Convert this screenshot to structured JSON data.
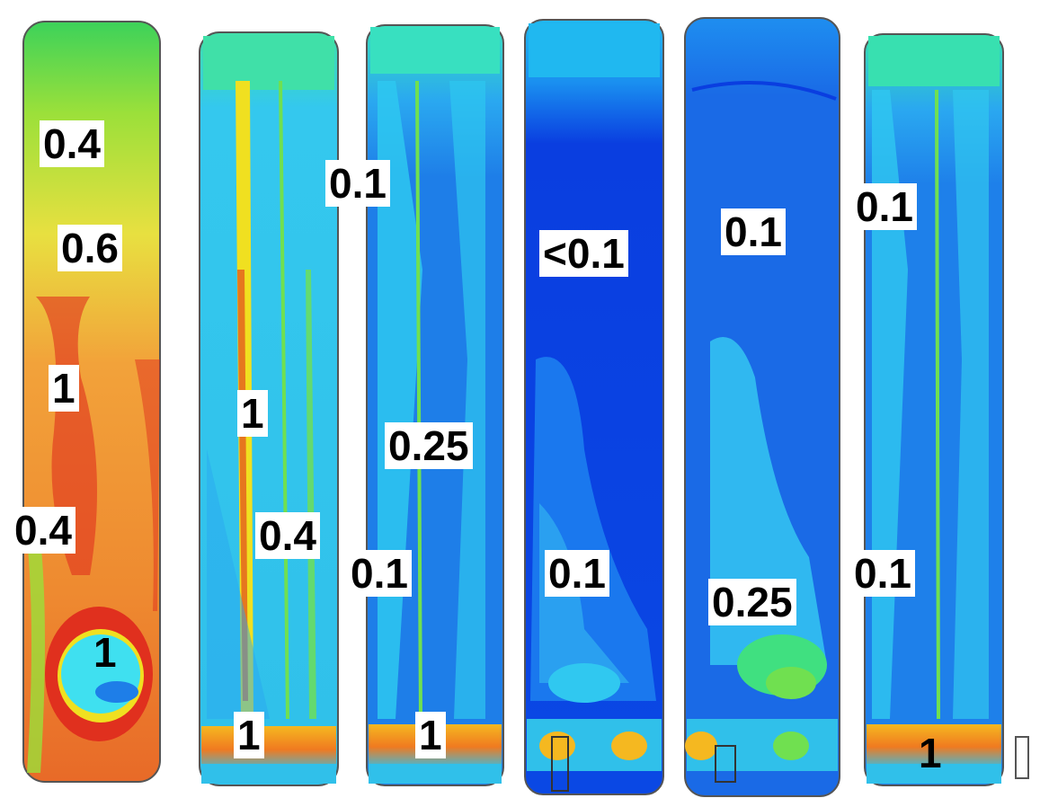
{
  "columns": [
    {
      "palette": {
        "top": "#3cd25a",
        "main": "#f2a23a",
        "accent": "#e0301e",
        "inner": "#3fe0f0"
      },
      "labels": [
        "0.4",
        "0.6",
        "1",
        "0.4",
        "1"
      ]
    },
    {
      "palette": {
        "top": "#40e0a8",
        "main": "#34c8ee",
        "accent": "#f0e020",
        "inner": "#70e050"
      },
      "labels": [
        "1",
        "0.4",
        "1"
      ]
    },
    {
      "palette": {
        "top": "#38e0c0",
        "main": "#1e7ee8",
        "accent": "#2ec8f0",
        "inner": "#f5a020"
      },
      "labels": [
        "0.1",
        "0.25",
        "0.1",
        "1"
      ]
    },
    {
      "palette": {
        "top": "#20b8f0",
        "main": "#0a3ee0",
        "accent": "#2aa0f0",
        "inner": "#f5b820"
      },
      "labels": [
        "<0.1",
        "0.1"
      ]
    },
    {
      "palette": {
        "top": "#1e8ef0",
        "main": "#1a6ae6",
        "accent": "#2eb0f0",
        "inner": "#40e080"
      },
      "labels": [
        "0.1",
        "0.25"
      ]
    },
    {
      "palette": {
        "top": "#38e0b0",
        "main": "#1e80ea",
        "accent": "#30c8f0",
        "inner": "#f5a020"
      },
      "labels": [
        "0.1",
        "0.1",
        "1"
      ]
    }
  ]
}
